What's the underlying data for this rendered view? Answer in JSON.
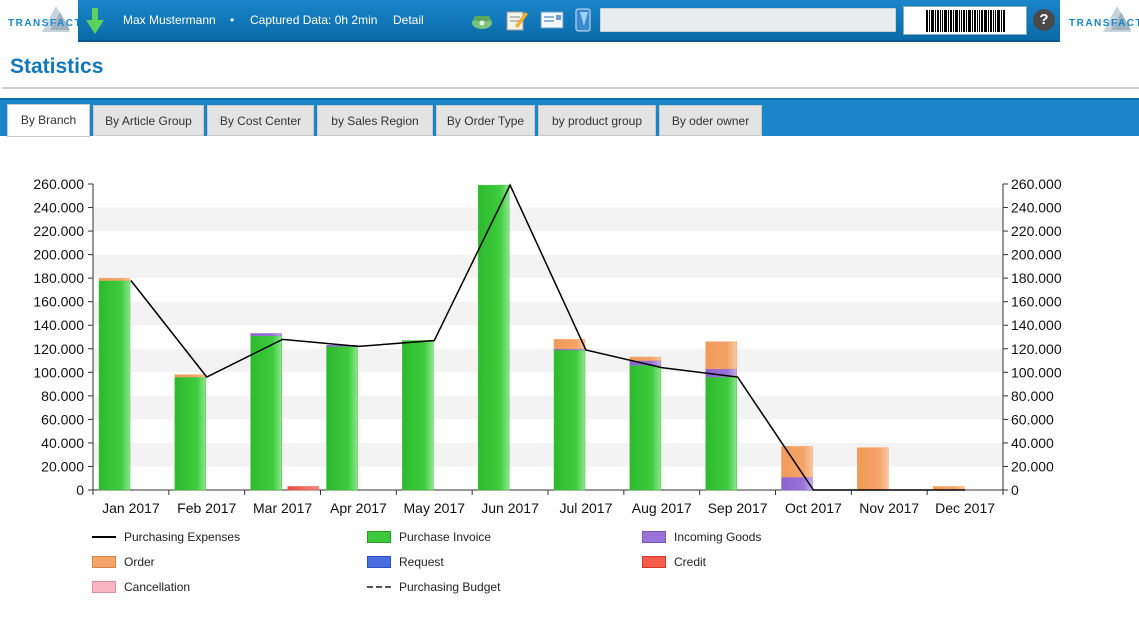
{
  "header": {
    "logo_text": "TRANSFACT",
    "user_name": "Max Mustermann",
    "separator": "•",
    "captured": "Captured Data: 0h 2min",
    "detail": "Detail",
    "help": "?"
  },
  "page": {
    "title": "Statistics"
  },
  "tabs": [
    {
      "label": "By Branch"
    },
    {
      "label": "By Article Group"
    },
    {
      "label": "By Cost Center"
    },
    {
      "label": "by Sales Region"
    },
    {
      "label": "By Order Type"
    },
    {
      "label": "by product group"
    },
    {
      "label": "By oder owner"
    }
  ],
  "colors": {
    "header_blue": "#1a86c9",
    "title_blue": "#1177bb",
    "purchase_invoice": "#3cc83c",
    "incoming_goods": "#9a73d8",
    "order": "#f4a468",
    "request": "#4a6ee0",
    "credit": "#f45c4c",
    "cancellation": "#f8b4c0",
    "expenses_line": "#000000"
  },
  "chart_data": {
    "type": "bar",
    "stacked": true,
    "categories": [
      "Jan 2017",
      "Feb 2017",
      "Mar 2017",
      "Apr 2017",
      "May 2017",
      "Jun 2017",
      "Jul 2017",
      "Aug 2017",
      "Sep 2017",
      "Oct 2017",
      "Nov 2017",
      "Dec 2017"
    ],
    "ylim": [
      0,
      260000
    ],
    "yticks": [
      "0",
      "20.000",
      "40.000",
      "60.000",
      "80.000",
      "100.000",
      "120.000",
      "140.000",
      "160.000",
      "180.000",
      "200.000",
      "220.000",
      "240.000",
      "260.000"
    ],
    "secondary_axis": true,
    "grid": "horizontal bands",
    "legend_position": "bottom",
    "series": [
      {
        "name": "Purchase Invoice",
        "color": "#3cc83c",
        "values": [
          178000,
          96000,
          131000,
          122000,
          127000,
          259000,
          119000,
          106000,
          96000,
          0,
          0,
          0
        ]
      },
      {
        "name": "Incoming Goods",
        "color": "#9a73d8",
        "values": [
          0,
          0,
          2000,
          1000,
          0,
          0,
          1000,
          4000,
          7000,
          11000,
          0,
          0
        ]
      },
      {
        "name": "Order",
        "color": "#f4a468",
        "values": [
          2000,
          2000,
          0,
          0,
          0,
          0,
          8000,
          3000,
          23000,
          26000,
          36000,
          3000
        ]
      },
      {
        "name": "Request",
        "color": "#4a6ee0",
        "values": [
          0,
          0,
          0,
          0,
          0,
          0,
          0,
          0,
          0,
          0,
          0,
          0
        ]
      },
      {
        "name": "Credit",
        "color": "#f45c4c",
        "values": [
          0,
          0,
          3000,
          0,
          0,
          0,
          0,
          0,
          0,
          0,
          0,
          0
        ]
      },
      {
        "name": "Cancellation",
        "color": "#f8b4c0",
        "values": [
          0,
          0,
          0,
          0,
          0,
          0,
          0,
          0,
          0,
          0,
          0,
          0
        ]
      }
    ],
    "lines": [
      {
        "name": "Purchasing Expenses",
        "color": "#000000",
        "style": "solid",
        "values": [
          178000,
          96000,
          128000,
          122000,
          127000,
          259000,
          119000,
          104000,
          96000,
          0,
          0,
          0
        ]
      },
      {
        "name": "Purchasing Budget",
        "color": "#555555",
        "style": "dashed",
        "values": []
      }
    ],
    "legend": [
      {
        "name": "Purchasing Expenses",
        "kind": "line",
        "color": "#000000"
      },
      {
        "name": "Purchase Invoice",
        "kind": "box",
        "color": "#3cc83c"
      },
      {
        "name": "Incoming Goods",
        "kind": "box",
        "color": "#9a73d8"
      },
      {
        "name": "Order",
        "kind": "box",
        "color": "#f4a468"
      },
      {
        "name": "Request",
        "kind": "box",
        "color": "#4a6ee0"
      },
      {
        "name": "Credit",
        "kind": "box",
        "color": "#f45c4c"
      },
      {
        "name": "Cancellation",
        "kind": "box",
        "color": "#f8b4c0"
      },
      {
        "name": "Purchasing Budget",
        "kind": "dashed",
        "color": "#555555"
      }
    ]
  }
}
